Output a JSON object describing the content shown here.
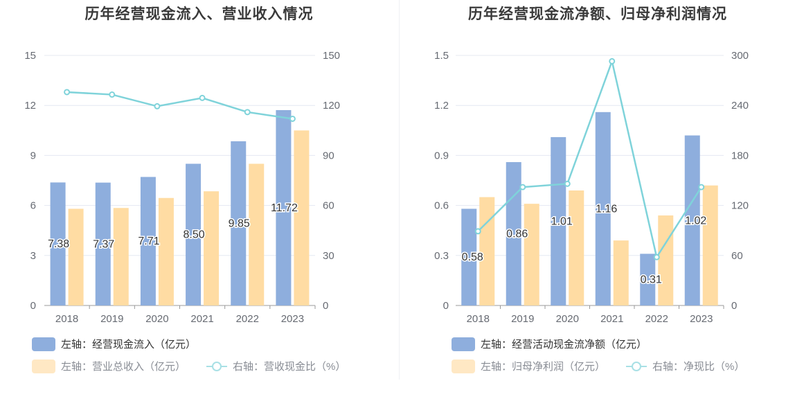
{
  "colors": {
    "bar1": "#8eaedd",
    "bar2": "#ffdca3",
    "line": "#7fd3da",
    "grid": "#e4e8f2",
    "axis": "#999999"
  },
  "chart_data": [
    {
      "type": "bar",
      "title": "历年经营现金流入、营业收入情况",
      "categories": [
        "2018",
        "2019",
        "2020",
        "2021",
        "2022",
        "2023"
      ],
      "y_left": {
        "ticks": [
          "0",
          "3",
          "6",
          "9",
          "12",
          "15"
        ],
        "range": [
          0,
          15
        ]
      },
      "y_right": {
        "ticks": [
          "0",
          "30",
          "60",
          "90",
          "120",
          "150"
        ],
        "range": [
          0,
          150
        ]
      },
      "series": [
        {
          "name": "左轴：经营现金流入（亿元）",
          "type": "bar",
          "axis": "left",
          "values": [
            7.38,
            7.37,
            7.71,
            8.5,
            9.85,
            11.72
          ],
          "labels": [
            "7.38",
            "7.37",
            "7.71",
            "8.50",
            "9.85",
            "11.72"
          ]
        },
        {
          "name": "左轴：营业总收入（亿元）",
          "type": "bar",
          "axis": "left",
          "values": [
            5.8,
            5.85,
            6.45,
            6.85,
            8.5,
            10.5
          ]
        },
        {
          "name": "右轴：营收现金比（%）",
          "type": "line",
          "axis": "right",
          "values": [
            128,
            126.5,
            119.5,
            124.5,
            116,
            112
          ]
        }
      ],
      "grid": true,
      "legend": "bottom"
    },
    {
      "type": "bar",
      "title": "历年经营现金流净额、归母净利润情况",
      "categories": [
        "2018",
        "2019",
        "2020",
        "2021",
        "2022",
        "2023"
      ],
      "y_left": {
        "ticks": [
          "0",
          "0.3",
          "0.6",
          "0.9",
          "1.2",
          "1.5"
        ],
        "range": [
          0,
          1.5
        ]
      },
      "y_right": {
        "ticks": [
          "0",
          "60",
          "120",
          "180",
          "240",
          "300"
        ],
        "range": [
          0,
          300
        ]
      },
      "series": [
        {
          "name": "左轴：经营活动现金流净额（亿元）",
          "type": "bar",
          "axis": "left",
          "values": [
            0.58,
            0.86,
            1.01,
            1.16,
            0.31,
            1.02
          ],
          "labels": [
            "0.58",
            "0.86",
            "1.01",
            "1.16",
            "0.31",
            "1.02"
          ]
        },
        {
          "name": "左轴：归母净利润（亿元）",
          "type": "bar",
          "axis": "left",
          "values": [
            0.65,
            0.61,
            0.69,
            0.39,
            0.54,
            0.72
          ]
        },
        {
          "name": "右轴：净现比（%）",
          "type": "line",
          "axis": "right",
          "values": [
            89,
            142,
            146,
            293,
            58,
            142
          ]
        }
      ],
      "grid": true,
      "legend": "bottom"
    }
  ]
}
